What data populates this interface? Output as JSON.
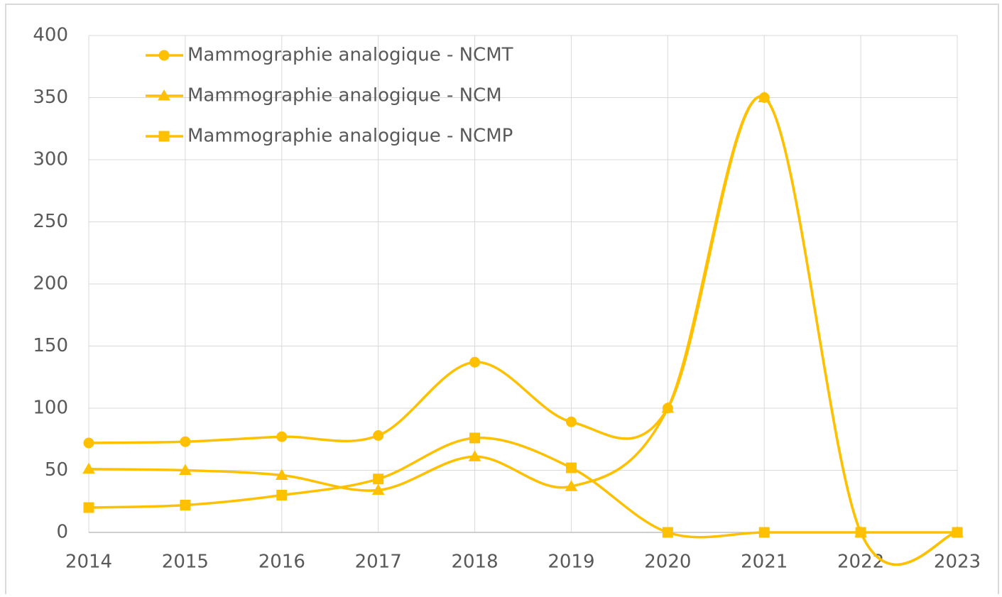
{
  "chart_data": {
    "type": "line",
    "categories": [
      "2014",
      "2015",
      "2016",
      "2017",
      "2018",
      "2019",
      "2020",
      "2021",
      "2022",
      "2023"
    ],
    "series": [
      {
        "name": "Mammographie analogique - NCMT",
        "color": "#FFC000",
        "marker": "circle",
        "values": [
          72,
          73,
          77,
          78,
          137,
          89,
          100,
          350,
          0,
          0
        ]
      },
      {
        "name": "Mammographie analogique - NCM",
        "color": "#FFC000",
        "marker": "triangle",
        "values": [
          51,
          50,
          46,
          34,
          61,
          37,
          100,
          350,
          0,
          0
        ]
      },
      {
        "name": "Mammographie analogique - NCMP",
        "color": "#FFC000",
        "marker": "square",
        "values": [
          20,
          22,
          30,
          43,
          76,
          52,
          0,
          0,
          0,
          0
        ]
      }
    ],
    "ylim": [
      0,
      400
    ],
    "yticks": [
      0,
      50,
      100,
      150,
      200,
      250,
      300,
      350,
      400
    ],
    "grid": true,
    "smooth": true,
    "legend": "top-left"
  }
}
